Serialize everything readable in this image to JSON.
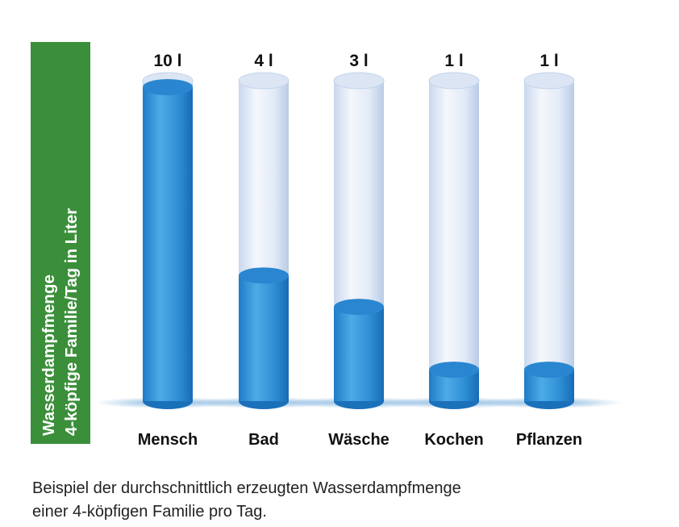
{
  "chart_data": {
    "type": "bar",
    "ylabel_lines": [
      "Wasserdampfmenge",
      "4-köpfige Familie/Tag in Liter"
    ],
    "categories": [
      "Mensch",
      "Bad",
      "Wäsche",
      "Kochen",
      "Pflanzen"
    ],
    "values": [
      10,
      4,
      3,
      1,
      1
    ],
    "value_labels": [
      "10 l",
      "4 l",
      "3 l",
      "1 l",
      "1 l"
    ],
    "unit": "l",
    "ylim": [
      0,
      10
    ],
    "grid": false,
    "legend": "none"
  },
  "caption": {
    "line1": "Beispiel der durchschnittlich erzeugten Wasserdampfmenge",
    "line2": "einer 4-köpfigen Familie pro Tag."
  },
  "colors": {
    "ylabel_box": "#3b8f3a",
    "fill_light": "#4aa9e4",
    "fill_dark": "#1a72bf",
    "tube_light": "#eef3fb",
    "tube_dark": "#c5d5ec",
    "text": "#111111"
  }
}
